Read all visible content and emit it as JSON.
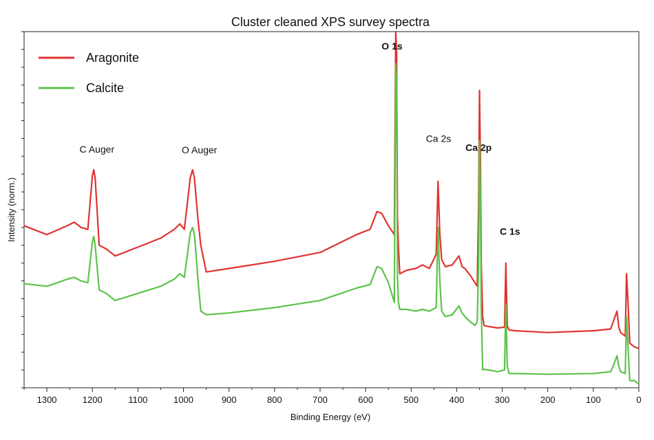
{
  "chart_data": {
    "type": "line",
    "title": "Cluster cleaned XPS survey spectra",
    "xlabel": "Binding Energy (eV)",
    "ylabel": "Intensity (norm.)",
    "xlim": [
      1350,
      0
    ],
    "ylim": [
      0,
      1
    ],
    "x_reversed": true,
    "grid": false,
    "legend_position": "top-left",
    "x_ticks": [
      "1300",
      "1200",
      "1100",
      "1000",
      "900",
      "800",
      "700",
      "600",
      "500",
      "400",
      "300",
      "200",
      "100",
      "0"
    ],
    "x_tick_values": [
      1300,
      1200,
      1100,
      1000,
      900,
      800,
      700,
      600,
      500,
      400,
      300,
      200,
      100,
      0
    ],
    "annotations": [
      {
        "text": "C Auger",
        "x": 1190,
        "y": 0.66,
        "bold": false
      },
      {
        "text": "O Auger",
        "x": 965,
        "y": 0.658,
        "bold": false
      },
      {
        "text": "O 1s",
        "x": 542,
        "y": 0.95,
        "bold": true
      },
      {
        "text": "Ca 2s",
        "x": 440,
        "y": 0.69,
        "bold": false
      },
      {
        "text": "Ca 2p",
        "x": 352,
        "y": 0.665,
        "bold": true
      },
      {
        "text": "C 1s",
        "x": 283,
        "y": 0.43,
        "bold": true
      }
    ],
    "series": [
      {
        "name": "Aragonite",
        "color": "#e0322f",
        "x": [
          1350,
          1300,
          1255,
          1240,
          1225,
          1210,
          1200,
          1197,
          1194,
          1185,
          1170,
          1150,
          1100,
          1050,
          1020,
          1008,
          998,
          985,
          980,
          976,
          972,
          968,
          962,
          950,
          900,
          800,
          700,
          620,
          590,
          575,
          565,
          550,
          537,
          534,
          532,
          530,
          528,
          525,
          510,
          490,
          475,
          460,
          445,
          441,
          437,
          433,
          425,
          410,
          395,
          388,
          382,
          370,
          360,
          355,
          352,
          350,
          348,
          346,
          343,
          340,
          330,
          310,
          295,
          292,
          289,
          285,
          270,
          200,
          100,
          62,
          55,
          48,
          44,
          40,
          30,
          27,
          24,
          20,
          10,
          0
        ],
        "y": [
          0.455,
          0.43,
          0.455,
          0.465,
          0.45,
          0.445,
          0.595,
          0.612,
          0.59,
          0.4,
          0.39,
          0.37,
          0.395,
          0.42,
          0.445,
          0.46,
          0.445,
          0.59,
          0.612,
          0.59,
          0.53,
          0.47,
          0.4,
          0.325,
          0.335,
          0.355,
          0.38,
          0.43,
          0.445,
          0.495,
          0.49,
          0.455,
          0.43,
          1.0,
          0.95,
          0.48,
          0.4,
          0.32,
          0.33,
          0.335,
          0.345,
          0.335,
          0.375,
          0.58,
          0.43,
          0.36,
          0.34,
          0.345,
          0.37,
          0.34,
          0.335,
          0.315,
          0.295,
          0.285,
          0.51,
          0.835,
          0.65,
          0.35,
          0.2,
          0.175,
          0.172,
          0.168,
          0.17,
          0.35,
          0.175,
          0.162,
          0.16,
          0.155,
          0.16,
          0.165,
          0.19,
          0.215,
          0.17,
          0.155,
          0.145,
          0.32,
          0.245,
          0.125,
          0.115,
          0.11
        ]
      },
      {
        "name": "Calcite",
        "color": "#5cc24a",
        "x": [
          1350,
          1300,
          1255,
          1240,
          1225,
          1210,
          1200,
          1197,
          1194,
          1185,
          1170,
          1150,
          1100,
          1050,
          1020,
          1008,
          998,
          985,
          980,
          976,
          972,
          968,
          962,
          950,
          900,
          800,
          700,
          620,
          590,
          575,
          565,
          550,
          537,
          534,
          532,
          530,
          528,
          525,
          510,
          490,
          475,
          460,
          445,
          441,
          437,
          433,
          425,
          410,
          395,
          388,
          382,
          370,
          360,
          355,
          352,
          350,
          348,
          346,
          343,
          340,
          330,
          310,
          295,
          292,
          289,
          285,
          270,
          200,
          100,
          62,
          55,
          48,
          44,
          40,
          30,
          27,
          24,
          20,
          10,
          0
        ],
        "y": [
          0.292,
          0.285,
          0.305,
          0.31,
          0.3,
          0.295,
          0.41,
          0.425,
          0.4,
          0.275,
          0.265,
          0.245,
          0.265,
          0.285,
          0.305,
          0.32,
          0.31,
          0.435,
          0.45,
          0.43,
          0.37,
          0.3,
          0.215,
          0.205,
          0.21,
          0.225,
          0.245,
          0.28,
          0.29,
          0.34,
          0.335,
          0.295,
          0.24,
          0.91,
          0.86,
          0.31,
          0.24,
          0.22,
          0.22,
          0.215,
          0.22,
          0.215,
          0.225,
          0.45,
          0.3,
          0.215,
          0.2,
          0.205,
          0.23,
          0.21,
          0.2,
          0.185,
          0.175,
          0.185,
          0.35,
          0.695,
          0.54,
          0.22,
          0.05,
          0.052,
          0.05,
          0.045,
          0.05,
          0.235,
          0.06,
          0.04,
          0.04,
          0.038,
          0.04,
          0.045,
          0.065,
          0.09,
          0.06,
          0.045,
          0.04,
          0.2,
          0.12,
          0.02,
          0.02,
          0.01
        ]
      }
    ]
  }
}
